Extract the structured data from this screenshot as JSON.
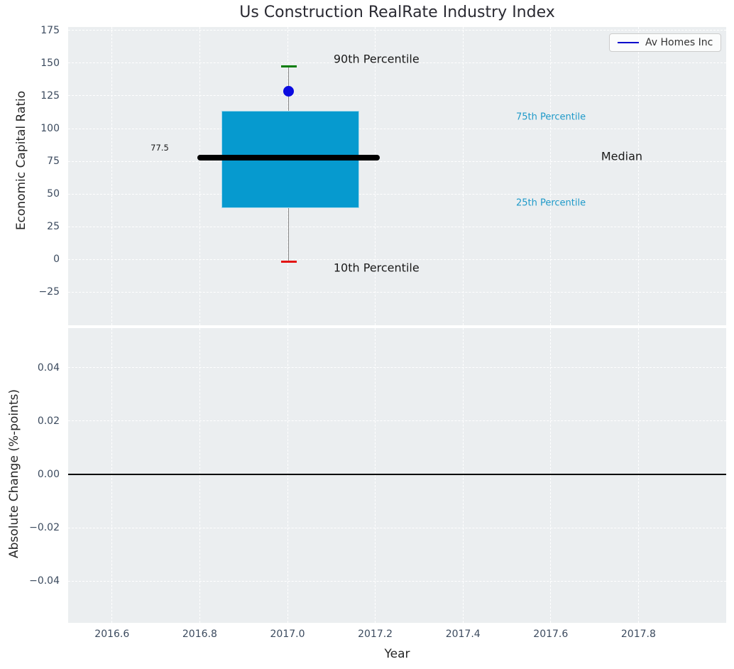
{
  "title": "Us Construction RealRate Industry Index",
  "xlabel": "Year",
  "legend": {
    "label": "Av Homes Inc",
    "line_color": "#0000cc"
  },
  "colors": {
    "plot_bg": "#ebeef0",
    "grid": "#ffffff",
    "box_fill": "#069acf",
    "box_edge": "#a6d9ec",
    "median_line": "#000000",
    "whisker": "#858585",
    "cap_high": "#067d06",
    "cap_low": "#e31414",
    "company_dot": "#0b0be0",
    "tick_label": "#3b4a5e",
    "annotation_dark": "#1a1a1a",
    "annotation_cyan": "#1f9ac9",
    "zero_line": "#000000"
  },
  "chart_data": [
    {
      "type": "boxplot",
      "title": "Us Construction RealRate Industry Index",
      "ylabel": "Economic Capital Ratio",
      "xlabel": "Year",
      "grid": true,
      "legend_position": "upper right",
      "xlim": [
        2016.5,
        2018.0
      ],
      "ylim": [
        -50.5,
        177.7
      ],
      "xticks": {
        "values": [
          2016.6,
          2016.8,
          2017.0,
          2017.2,
          2017.4,
          2017.6,
          2017.8
        ],
        "labels": [
          "2016.6",
          "2016.8",
          "2017.0",
          "2017.2",
          "2017.4",
          "2017.6",
          "2017.8"
        ]
      },
      "yticks": {
        "values": [
          175,
          150,
          125,
          100,
          75,
          50,
          25,
          0,
          -25
        ],
        "labels": [
          "175",
          "150",
          "125",
          "100",
          "75",
          "50",
          "25",
          "0",
          "−25"
        ]
      },
      "box": {
        "x": 2017.003,
        "x_left": 2016.849,
        "x_right": 2017.163,
        "median": 77.5,
        "median_label": "77.5",
        "median_x_left": 2016.794,
        "median_x_right": 2017.21,
        "q1": 39,
        "q3": 113.5,
        "whisker_low": -2,
        "whisker_high": 147.5,
        "cap_halfwidth": 0.018,
        "company_value": 128.5
      },
      "annotations": [
        {
          "text": "90th Percentile",
          "x": 2017.105,
          "y": 153.0,
          "color": "#1a1a1a",
          "size": 16
        },
        {
          "text": "10th Percentile",
          "x": 2017.105,
          "y": -6.5,
          "color": "#1a1a1a",
          "size": 16
        },
        {
          "text": "75th Percentile",
          "x": 2017.521,
          "y": 108.7,
          "color": "#1f9ac9",
          "size": 13
        },
        {
          "text": "25th Percentile",
          "x": 2017.521,
          "y": 42.9,
          "color": "#1f9ac9",
          "size": 13
        },
        {
          "text": "Median",
          "x": 2017.715,
          "y": 79.0,
          "color": "#1a1a1a",
          "size": 16
        },
        {
          "text": "77.5",
          "x": 2016.688,
          "y": 85.3,
          "color": "#1a1a1a",
          "size": 11.5
        }
      ]
    },
    {
      "type": "line",
      "ylabel": "Absolute Change (%-points)",
      "xlabel": "Year",
      "grid": true,
      "xlim": [
        2016.5,
        2018.0
      ],
      "ylim": [
        -0.0557,
        0.0549
      ],
      "xticks": {
        "values": [
          2016.6,
          2016.8,
          2017.0,
          2017.2,
          2017.4,
          2017.6,
          2017.8
        ],
        "labels": [
          "2016.6",
          "2016.8",
          "2017.0",
          "2017.2",
          "2017.4",
          "2017.6",
          "2017.8"
        ]
      },
      "yticks": {
        "values": [
          0.04,
          0.02,
          0.0,
          -0.02,
          -0.04
        ],
        "labels": [
          "0.04",
          "0.02",
          "0.00",
          "−0.02",
          "−0.04"
        ]
      },
      "zero_line_y": 0.0
    }
  ]
}
